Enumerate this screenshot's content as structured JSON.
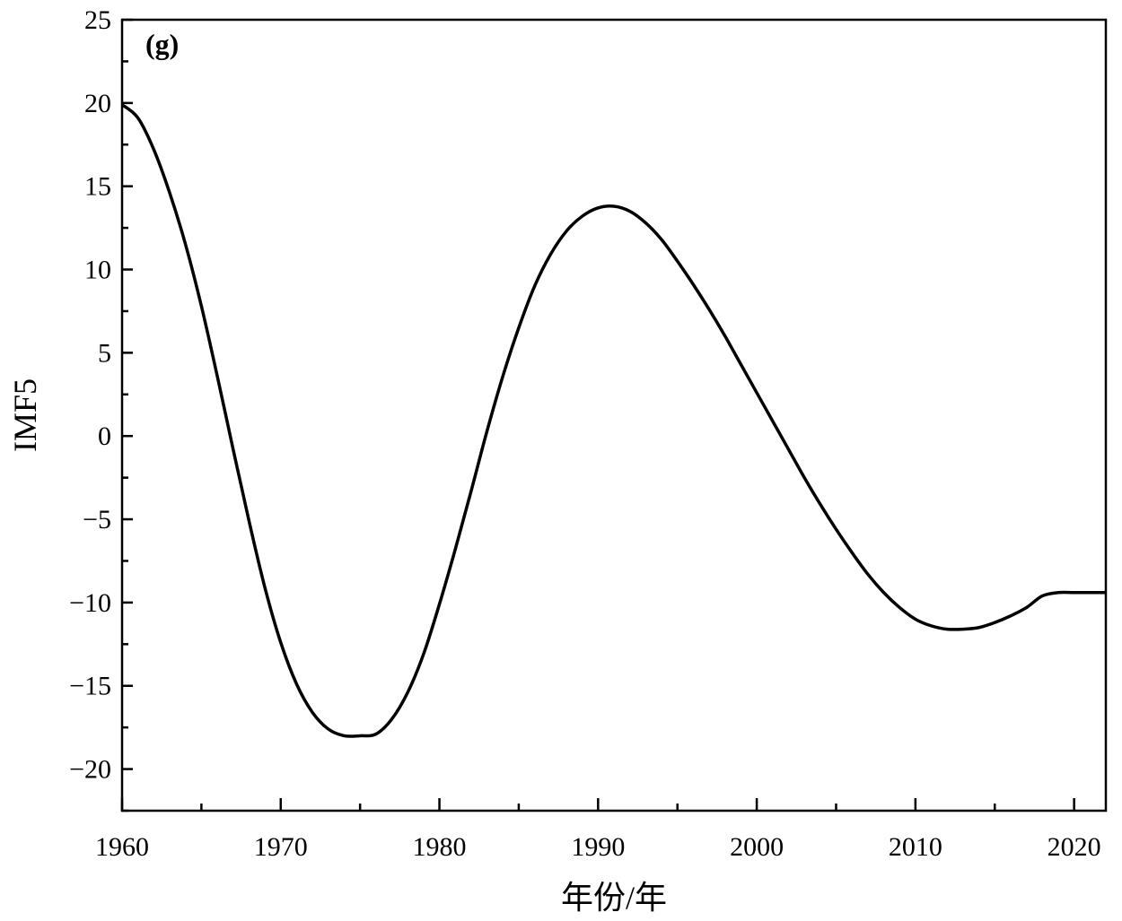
{
  "chart_data": {
    "type": "line",
    "panel_label": "(g)",
    "xlabel": "年份/年",
    "ylabel": "IMF5",
    "xlim": [
      1960,
      2022
    ],
    "ylim": [
      -22.5,
      25
    ],
    "x_ticks": [
      1960,
      1970,
      1980,
      1990,
      2000,
      2010,
      2020
    ],
    "x_minor_ticks": [
      1965,
      1975,
      1985,
      1995,
      2005,
      2015
    ],
    "y_ticks": [
      -20,
      -15,
      -10,
      -5,
      0,
      5,
      10,
      15,
      20,
      25
    ],
    "y_tick_labels": [
      "−20",
      "−15",
      "−10",
      "−5",
      "0",
      "5",
      "10",
      "15",
      "20",
      "25"
    ],
    "y_minor_ticks": [
      -22.5,
      -17.5,
      -12.5,
      -7.5,
      -2.5,
      2.5,
      7.5,
      12.5,
      17.5,
      22.5
    ],
    "grid": false,
    "line_color": "#000000",
    "series": [
      {
        "x": [
          1960,
          1961,
          1962,
          1963,
          1964,
          1965,
          1966,
          1967,
          1968,
          1969,
          1970,
          1971,
          1972,
          1973,
          1974,
          1975,
          1976,
          1977,
          1978,
          1979,
          1980,
          1981,
          1982,
          1983,
          1984,
          1985,
          1986,
          1987,
          1988,
          1989,
          1990,
          1991,
          1992,
          1993,
          1994,
          1995,
          1996,
          1997,
          1998,
          1999,
          2000,
          2001,
          2002,
          2003,
          2004,
          2005,
          2006,
          2007,
          2008,
          2009,
          2010,
          2011,
          2012,
          2013,
          2014,
          2015,
          2016,
          2017,
          2018,
          2019,
          2020,
          2021,
          2022
        ],
        "y": [
          19.9,
          19.1,
          17.2,
          14.6,
          11.5,
          7.8,
          3.6,
          -0.8,
          -5.1,
          -9.1,
          -12.4,
          -14.9,
          -16.6,
          -17.6,
          -18.0,
          -18.0,
          -17.9,
          -17.0,
          -15.4,
          -13.1,
          -10.1,
          -6.8,
          -3.3,
          0.3,
          3.6,
          6.5,
          9.0,
          10.9,
          12.3,
          13.2,
          13.7,
          13.8,
          13.5,
          12.8,
          11.8,
          10.5,
          9.1,
          7.6,
          6.0,
          4.3,
          2.6,
          0.9,
          -0.8,
          -2.5,
          -4.1,
          -5.6,
          -7.0,
          -8.3,
          -9.4,
          -10.3,
          -11.0,
          -11.4,
          -11.6,
          -11.6,
          -11.5,
          -11.2,
          -10.8,
          -10.3,
          -9.6,
          -9.4,
          -9.4,
          -9.4,
          -9.4
        ]
      }
    ]
  }
}
